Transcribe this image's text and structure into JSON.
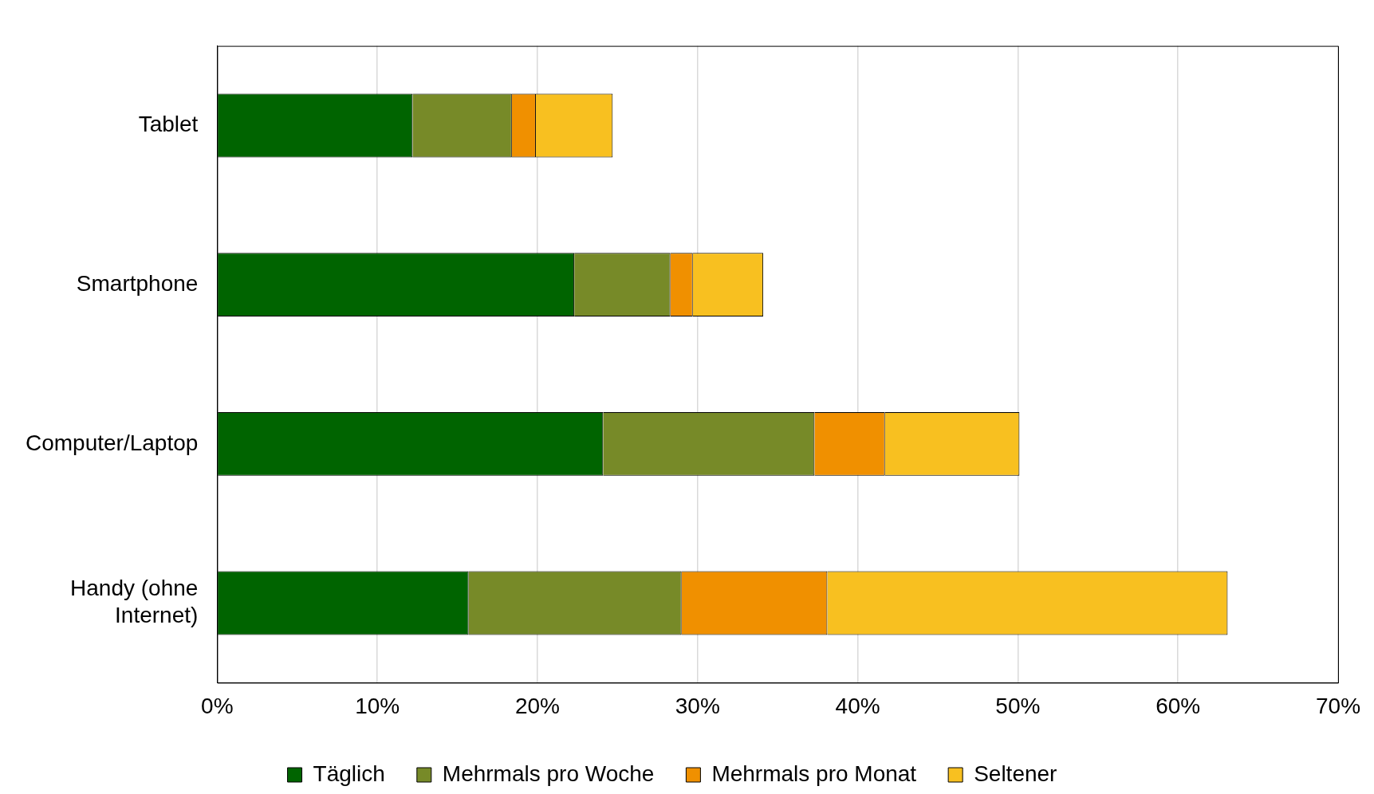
{
  "chart_data": {
    "type": "bar",
    "orientation": "horizontal",
    "stacked": true,
    "categories": [
      "Tablet",
      "Smartphone",
      "Computer/Laptop",
      "Handy (ohne Internet)"
    ],
    "series": [
      {
        "name": "Täglich",
        "color": "#006400",
        "values": [
          12.2,
          22.3,
          24.1,
          15.7
        ]
      },
      {
        "name": "Mehrmals pro Woche",
        "color": "#778a28",
        "values": [
          6.2,
          6.0,
          13.2,
          13.3
        ]
      },
      {
        "name": "Mehrmals pro Monat",
        "color": "#f09000",
        "values": [
          1.5,
          1.4,
          4.4,
          9.1
        ]
      },
      {
        "name": "Seltener",
        "color": "#f8c020",
        "values": [
          4.8,
          4.4,
          8.4,
          25.0
        ]
      }
    ],
    "xlim": [
      0,
      70
    ],
    "xticks": [
      {
        "value": 0,
        "label": "0%"
      },
      {
        "value": 10,
        "label": "10%"
      },
      {
        "value": 20,
        "label": "20%"
      },
      {
        "value": 30,
        "label": "30%"
      },
      {
        "value": 40,
        "label": "40%"
      },
      {
        "value": 50,
        "label": "50%"
      },
      {
        "value": 60,
        "label": "60%"
      },
      {
        "value": 70,
        "label": "70%"
      }
    ],
    "grid": "x",
    "legend": "bottom"
  }
}
